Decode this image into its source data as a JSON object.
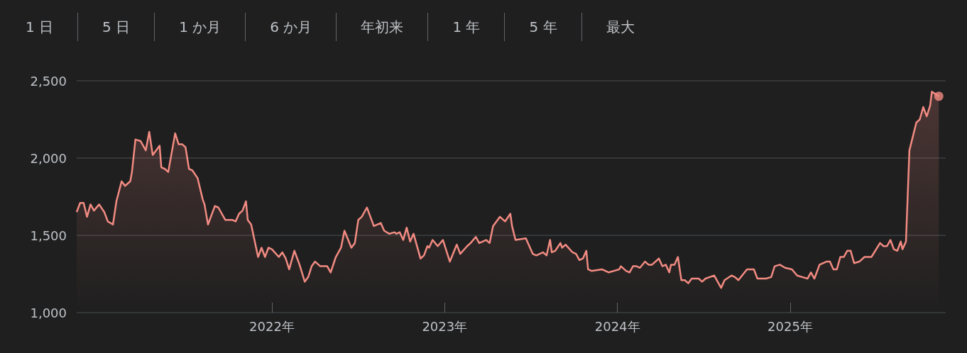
{
  "chart_data": {
    "type": "area",
    "annotations": [
      "1 日",
      "5 日",
      "1 か月",
      "6 か月",
      "年初来",
      "1 年",
      "5 年",
      "最大"
    ],
    "x": [
      2020.87,
      2020.89,
      2020.91,
      2020.93,
      2020.95,
      2020.97,
      2021.0,
      2021.03,
      2021.05,
      2021.08,
      2021.1,
      2021.13,
      2021.15,
      2021.18,
      2021.19,
      2021.21,
      2021.24,
      2021.27,
      2021.29,
      2021.31,
      2021.35,
      2021.36,
      2021.38,
      2021.4,
      2021.44,
      2021.46,
      2021.48,
      2021.5,
      2021.52,
      2021.54,
      2021.57,
      2021.6,
      2021.61,
      2021.63,
      2021.67,
      2021.69,
      2021.73,
      2021.77,
      2021.79,
      2021.81,
      2021.83,
      2021.85,
      2021.86,
      2021.88,
      2021.92,
      2021.94,
      2021.96,
      2021.98,
      2022.0,
      2022.04,
      2022.06,
      2022.08,
      2022.1,
      2022.13,
      2022.16,
      2022.19,
      2022.21,
      2022.23,
      2022.25,
      2022.28,
      2022.32,
      2022.34,
      2022.37,
      2022.4,
      2022.42,
      2022.46,
      2022.48,
      2022.5,
      2022.52,
      2022.55,
      2022.59,
      2022.63,
      2022.65,
      2022.68,
      2022.71,
      2022.72,
      2022.74,
      2022.76,
      2022.78,
      2022.8,
      2022.82,
      2022.86,
      2022.88,
      2022.9,
      2022.91,
      2022.93,
      2022.96,
      2022.99,
      2023.03,
      2023.07,
      2023.09,
      2023.13,
      2023.15,
      2023.18,
      2023.2,
      2023.24,
      2023.26,
      2023.28,
      2023.32,
      2023.35,
      2023.38,
      2023.39,
      2023.41,
      2023.47,
      2023.49,
      2023.51,
      2023.53,
      2023.55,
      2023.57,
      2023.59,
      2023.61,
      2023.62,
      2023.64,
      2023.67,
      2023.68,
      2023.7,
      2023.74,
      2023.76,
      2023.78,
      2023.8,
      2023.82,
      2023.83,
      2023.85,
      2023.91,
      2023.93,
      2023.95,
      2023.98,
      2024.01,
      2024.02,
      2024.05,
      2024.07,
      2024.09,
      2024.11,
      2024.13,
      2024.16,
      2024.18,
      2024.2,
      2024.24,
      2024.26,
      2024.28,
      2024.3,
      2024.31,
      2024.33,
      2024.35,
      2024.37,
      2024.39,
      2024.41,
      2024.43,
      2024.47,
      2024.49,
      2024.51,
      2024.56,
      2024.6,
      2024.62,
      2024.66,
      2024.68,
      2024.7,
      2024.75,
      2024.79,
      2024.81,
      2024.86,
      2024.89,
      2024.91,
      2024.94,
      2024.97,
      2025.01,
      2025.04,
      2025.07,
      2025.1,
      2025.12,
      2025.14,
      2025.17,
      2025.21,
      2025.23,
      2025.25,
      2025.27,
      2025.29,
      2025.31,
      2025.33,
      2025.35,
      2025.37,
      2025.4,
      2025.43,
      2025.45,
      2025.47,
      2025.52,
      2025.54,
      2025.56,
      2025.58,
      2025.6,
      2025.62,
      2025.64,
      2025.65,
      2025.67,
      2025.69,
      2025.73,
      2025.75,
      2025.77,
      2025.79,
      2025.81,
      2025.82,
      2025.86
    ],
    "values": [
      1650,
      1710,
      1710,
      1620,
      1700,
      1660,
      1700,
      1650,
      1590,
      1570,
      1720,
      1850,
      1820,
      1850,
      1910,
      2120,
      2110,
      2050,
      2170,
      2020,
      2080,
      1940,
      1930,
      1910,
      2160,
      2090,
      2090,
      2070,
      1930,
      1920,
      1870,
      1730,
      1700,
      1570,
      1690,
      1680,
      1600,
      1600,
      1590,
      1640,
      1660,
      1720,
      1600,
      1570,
      1360,
      1420,
      1360,
      1420,
      1410,
      1360,
      1390,
      1350,
      1280,
      1400,
      1310,
      1200,
      1230,
      1300,
      1330,
      1300,
      1300,
      1260,
      1360,
      1420,
      1530,
      1420,
      1450,
      1600,
      1620,
      1680,
      1560,
      1580,
      1530,
      1510,
      1520,
      1510,
      1520,
      1470,
      1550,
      1460,
      1510,
      1350,
      1370,
      1430,
      1420,
      1470,
      1430,
      1470,
      1330,
      1440,
      1380,
      1430,
      1450,
      1490,
      1450,
      1470,
      1450,
      1560,
      1620,
      1590,
      1640,
      1560,
      1470,
      1480,
      1430,
      1380,
      1370,
      1380,
      1390,
      1370,
      1470,
      1390,
      1400,
      1450,
      1420,
      1440,
      1390,
      1380,
      1340,
      1350,
      1400,
      1280,
      1270,
      1280,
      1270,
      1260,
      1270,
      1280,
      1300,
      1270,
      1260,
      1300,
      1300,
      1290,
      1330,
      1310,
      1310,
      1350,
      1300,
      1310,
      1260,
      1310,
      1310,
      1360,
      1210,
      1210,
      1190,
      1220,
      1220,
      1200,
      1220,
      1240,
      1160,
      1210,
      1240,
      1230,
      1210,
      1280,
      1280,
      1220,
      1220,
      1230,
      1300,
      1310,
      1290,
      1280,
      1240,
      1230,
      1220,
      1260,
      1220,
      1310,
      1330,
      1330,
      1280,
      1280,
      1360,
      1360,
      1400,
      1400,
      1320,
      1330,
      1360,
      1360,
      1360,
      1450,
      1430,
      1430,
      1470,
      1410,
      1400,
      1460,
      1410,
      1460,
      2050,
      2230,
      2250,
      2330,
      2270,
      2340,
      2430,
      2400
    ],
    "color": "#f28b82",
    "xlim": [
      2020.87,
      2025.9
    ],
    "xticks": [
      {
        "value": 2022,
        "label": "2022年"
      },
      {
        "value": 2023,
        "label": "2023年"
      },
      {
        "value": 2024,
        "label": "2024年"
      },
      {
        "value": 2025,
        "label": "2025年"
      }
    ],
    "ylim": [
      1000,
      2500
    ],
    "yticks": [
      {
        "value": 1000,
        "label": "1,000"
      },
      {
        "value": 1500,
        "label": "1,500"
      },
      {
        "value": 2000,
        "label": "2,000"
      },
      {
        "value": 2500,
        "label": "2,500"
      }
    ],
    "grid": "y"
  }
}
